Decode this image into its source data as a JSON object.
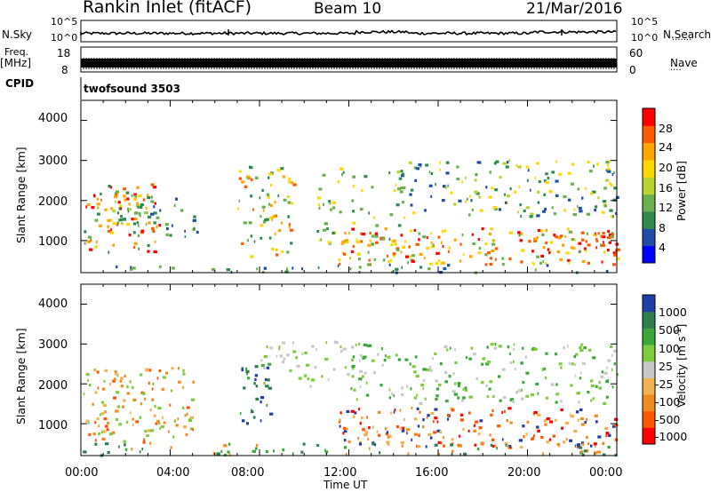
{
  "header": {
    "station": "Rankin Inlet (fitACF)",
    "beam": "Beam 10",
    "date": "21/Mar/2016"
  },
  "panels": {
    "nsky_label": "N.Sky",
    "nsky_ticks": [
      "10^5",
      "10^0"
    ],
    "nsearch_label": "N.Search",
    "nsearch_ticks": [
      "10^5",
      "10^0"
    ],
    "freq_label_line1": "Freq.",
    "freq_label_line2": "[MHz]",
    "freq_ticks": [
      "18",
      "8"
    ],
    "nave_label": "Nave",
    "nave_ticks": [
      "60",
      "0"
    ],
    "cpid_label": "CPID",
    "cpid_value": "twofsound 3503",
    "range_label": "Slant Range [km]"
  },
  "chart_data": [
    {
      "type": "heatmap",
      "title": "Power [dB]",
      "ylabel": "Slant Range [km]",
      "ylim": [
        200,
        4500
      ],
      "yticks": [
        "1000",
        "2000",
        "3000",
        "4000"
      ],
      "colorbar_label": "Power [dB]",
      "colorbar_ticks": [
        "28",
        "24",
        "20",
        "16",
        "12",
        "8",
        "4"
      ],
      "colors": [
        "#0000ff",
        "#1e4ea6",
        "#2f8a4b",
        "#6ab04c",
        "#b8d430",
        "#ffd700",
        "#ffa500",
        "#ff5a00",
        "#ff0000"
      ]
    },
    {
      "type": "heatmap",
      "title": "Velocity [m s^-1]",
      "ylabel": "Slant Range [km]",
      "ylim": [
        200,
        4500
      ],
      "yticks": [
        "1000",
        "2000",
        "3000",
        "4000"
      ],
      "colorbar_label": "Velocity [m s",
      "colorbar_label_sup": "-1",
      "colorbar_ticks": [
        "1000",
        "500",
        "100",
        "25",
        "-25",
        "-100",
        "-500",
        "-1000"
      ],
      "colors": [
        "#1f3fa6",
        "#2f7f4e",
        "#3aa83a",
        "#7fcc3f",
        "#c8c8c8",
        "#f2b24f",
        "#f08c1f",
        "#ff5500",
        "#ff0000"
      ]
    }
  ],
  "xaxis": {
    "label": "Time UT",
    "ticks": [
      "00:00",
      "04:00",
      "08:00",
      "12:00",
      "16:00",
      "20:00",
      "00:00"
    ]
  }
}
